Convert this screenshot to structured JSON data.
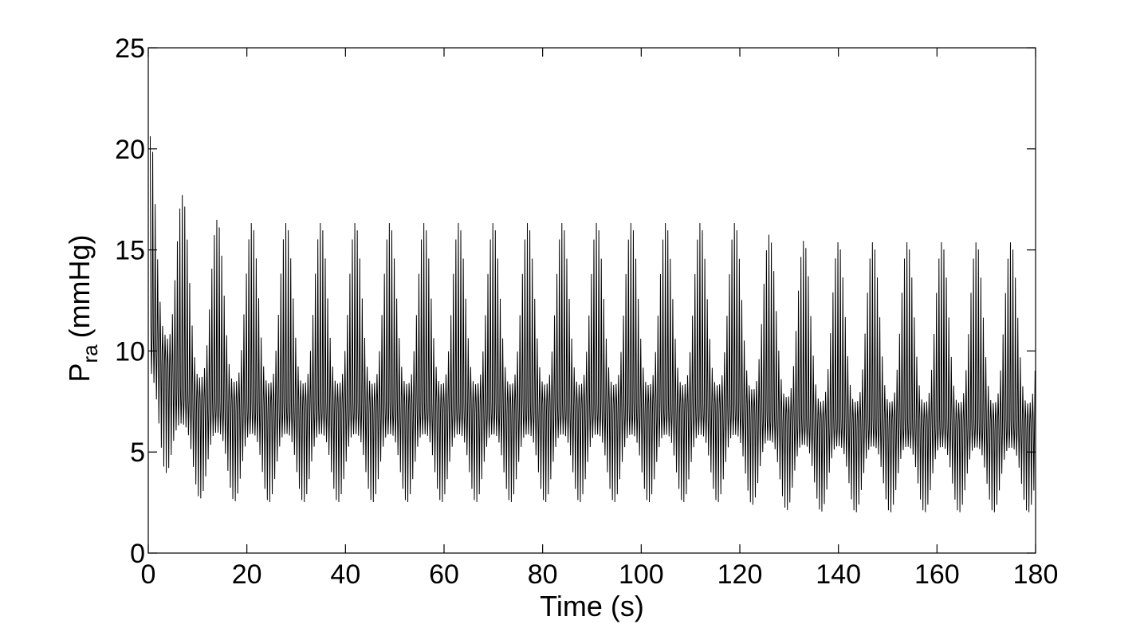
{
  "chart_data": {
    "type": "line",
    "title": "",
    "xlabel": "Time (s)",
    "ylabel_main": "P",
    "ylabel_subscript": "ra",
    "ylabel_unit": "(mmHg)",
    "xlim": [
      0,
      180
    ],
    "ylim": [
      0,
      25
    ],
    "xticks": [
      0,
      20,
      40,
      60,
      80,
      100,
      120,
      140,
      160,
      180
    ],
    "yticks": [
      0,
      5,
      10,
      15,
      20,
      25
    ],
    "grid": false,
    "legend": "none",
    "line_color": "#000000",
    "series": [
      {
        "envelope": {
          "upper_max": [
            [
              0.4,
              21.0
            ],
            [
              1.0,
              22.1
            ],
            [
              2.0,
              21.2
            ],
            [
              3.0,
              19.8
            ],
            [
              4.0,
              19.3
            ],
            [
              6.0,
              18.1
            ],
            [
              8.0,
              17.3
            ],
            [
              10.0,
              16.9
            ],
            [
              14.0,
              16.5
            ],
            [
              20.0,
              16.35
            ],
            [
              120.0,
              16.35
            ],
            [
              124.0,
              15.9
            ],
            [
              130.0,
              15.5
            ],
            [
              140.0,
              15.4
            ],
            [
              180.0,
              15.4
            ]
          ],
          "lower_min": [
            [
              0.4,
              8.0
            ],
            [
              1.0,
              6.5
            ],
            [
              2.0,
              5.0
            ],
            [
              3.0,
              4.2
            ],
            [
              4.0,
              3.8
            ],
            [
              6.0,
              3.3
            ],
            [
              8.0,
              2.9
            ],
            [
              10.0,
              2.7
            ],
            [
              14.0,
              2.6
            ],
            [
              20.0,
              2.5
            ],
            [
              120.0,
              2.5
            ],
            [
              124.0,
              2.3
            ],
            [
              130.0,
              2.1
            ],
            [
              140.0,
              2.0
            ],
            [
              180.0,
              2.0
            ]
          ],
          "band_top": [
            [
              0.4,
              13.0
            ],
            [
              3.0,
              11.0
            ],
            [
              6.0,
              9.5
            ],
            [
              10.0,
              8.7
            ],
            [
              20.0,
              8.4
            ],
            [
              120.0,
              8.3
            ],
            [
              125.0,
              7.9
            ],
            [
              135.0,
              7.5
            ],
            [
              180.0,
              7.4
            ]
          ],
          "band_bottom": [
            [
              0.4,
              9.0
            ],
            [
              3.0,
              8.0
            ],
            [
              6.0,
              6.5
            ],
            [
              10.0,
              6.0
            ],
            [
              20.0,
              5.9
            ],
            [
              120.0,
              5.85
            ],
            [
              125.0,
              5.6
            ],
            [
              135.0,
              5.3
            ],
            [
              180.0,
              5.2
            ]
          ]
        },
        "beat_period_s": 0.5,
        "respiratory_period_s": 7.0
      }
    ]
  }
}
